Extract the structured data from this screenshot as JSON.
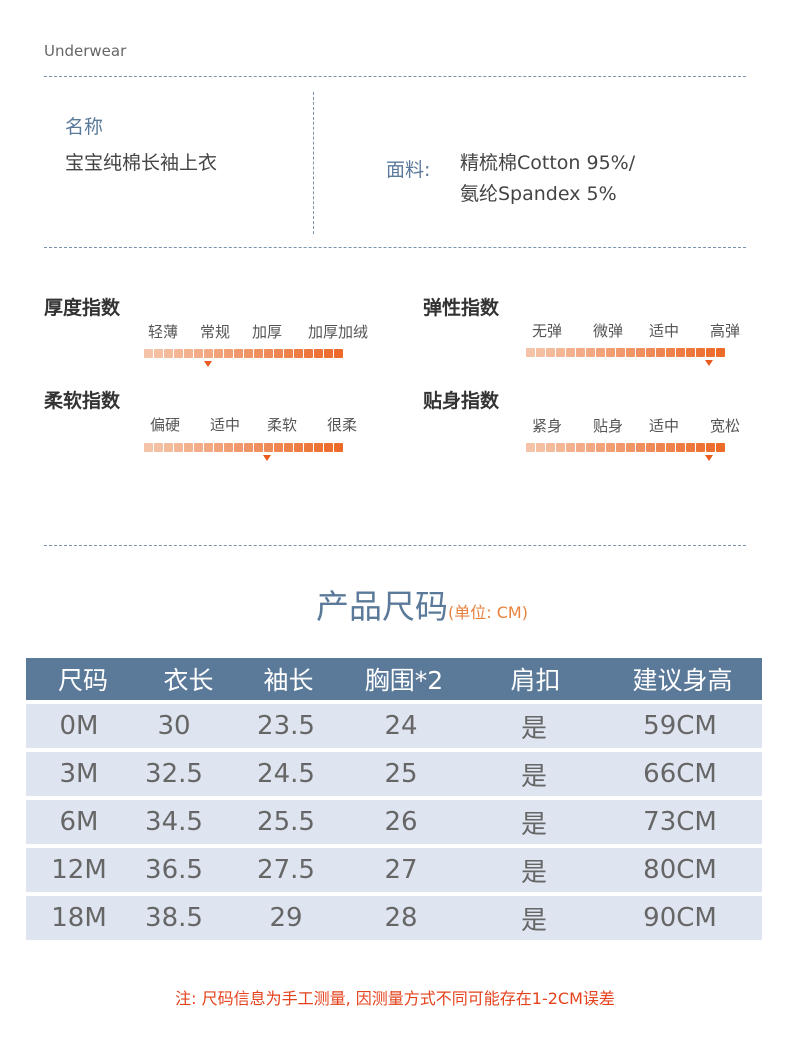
{
  "brand": "Underwear",
  "product": {
    "name_label": "名称",
    "name_value": "宝宝纯棉长袖上衣",
    "fabric_label": "面料:",
    "fabric_lines": [
      "精梳棉Cotton 95%/",
      "氨纶Spandex 5%"
    ]
  },
  "indices": [
    {
      "title": "厚度指数",
      "levels": [
        "轻薄",
        "常规",
        "加厚",
        "加厚加绒"
      ],
      "marker_fraction": 0.32
    },
    {
      "title": "弹性指数",
      "levels": [
        "无弹",
        "微弹",
        "适中",
        "高弹"
      ],
      "marker_fraction": 0.92
    },
    {
      "title": "柔软指数",
      "levels": [
        "偏硬",
        "适中",
        "柔软",
        "很柔"
      ],
      "marker_fraction": 0.62
    },
    {
      "title": "贴身指数",
      "levels": [
        "紧身",
        "贴身",
        "适中",
        "宽松"
      ],
      "marker_fraction": 0.92
    }
  ],
  "size_section": {
    "title": "产品尺码",
    "unit": "(单位: CM)",
    "columns": [
      "尺码",
      "衣长",
      "袖长",
      "胸围*2",
      "肩扣",
      "建议身高"
    ],
    "rows": [
      [
        "0M",
        "30",
        "23.5",
        "24",
        "是",
        "59CM"
      ],
      [
        "3M",
        "32.5",
        "24.5",
        "25",
        "是",
        "66CM"
      ],
      [
        "6M",
        "34.5",
        "25.5",
        "26",
        "是",
        "73CM"
      ],
      [
        "12M",
        "36.5",
        "27.5",
        "27",
        "是",
        "80CM"
      ],
      [
        "18M",
        "38.5",
        "29",
        "28",
        "是",
        "90CM"
      ]
    ]
  },
  "note": "注: 尺码信息为手工测量, 因测量方式不同可能存在1-2CM误差",
  "colors": {
    "accent_blue": "#5b7a9a",
    "row_bg": "#dee5f0",
    "bar_light": "#f5c4a8",
    "bar_dark": "#ec6a2a",
    "marker": "#e85a1e",
    "note_red": "#e5421d"
  }
}
